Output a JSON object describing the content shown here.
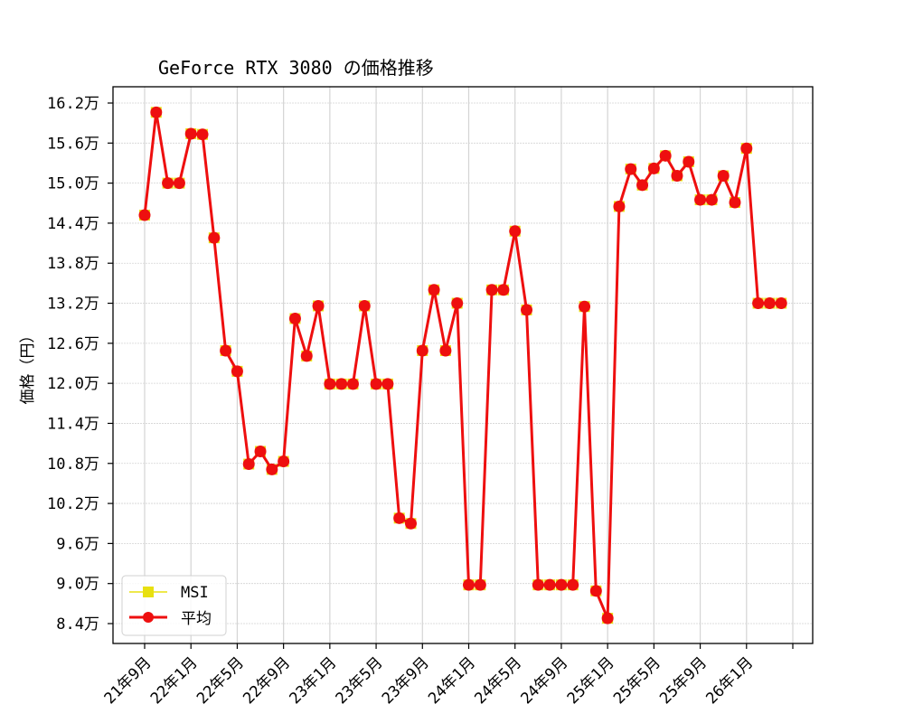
{
  "chart_data": {
    "type": "line",
    "title": "GeForce RTX 3080 の価格推移",
    "xlabel": "",
    "ylabel": "価格（円）",
    "ylim": [
      83500,
      165000
    ],
    "grid": true,
    "legend_position": "lower left",
    "y_ticks": [
      84000,
      90000,
      96000,
      102000,
      108000,
      114000,
      120000,
      126000,
      132000,
      138000,
      144000,
      150000,
      156000,
      162000
    ],
    "y_tick_labels": [
      "8.4万",
      "9.0万",
      "9.6万",
      "10.2万",
      "10.8万",
      "11.4万",
      "12.0万",
      "12.6万",
      "13.2万",
      "13.8万",
      "14.4万",
      "15.0万",
      "15.6万",
      "16.2万"
    ],
    "x_tick_labels": [
      "21年9月",
      "22年1月",
      "22年5月",
      "22年9月",
      "23年1月",
      "23年5月",
      "23年9月",
      "24年1月",
      "24年5月",
      "24年9月",
      "25年1月",
      "25年5月",
      "25年9月",
      "26年1月",
      ""
    ],
    "x": [
      "2021-09",
      "2021-10",
      "2021-11",
      "2021-12",
      "2022-01",
      "2022-02",
      "2022-03",
      "2022-04",
      "2022-05",
      "2022-06",
      "2022-07",
      "2022-08",
      "2022-09",
      "2022-10",
      "2022-11",
      "2022-12",
      "2023-01",
      "2023-02",
      "2023-03",
      "2023-04",
      "2023-05",
      "2023-06",
      "2023-07",
      "2023-08",
      "2023-09",
      "2023-10",
      "2023-11",
      "2023-12",
      "2024-01",
      "2024-02",
      "2024-03",
      "2024-04",
      "2024-05",
      "2024-06",
      "2024-07",
      "2024-08",
      "2024-09",
      "2024-10",
      "2024-11",
      "2024-12",
      "2025-01",
      "2025-02",
      "2025-03",
      "2025-04",
      "2025-05",
      "2025-06",
      "2025-07",
      "2025-08",
      "2025-09",
      "2025-10",
      "2025-11",
      "2025-12",
      "2026-01",
      "2026-02",
      "2026-03",
      "2026-04"
    ],
    "series": [
      {
        "name": "MSI",
        "color": "#e8e010",
        "marker": "square",
        "values": [
          145200,
          160600,
          150000,
          150000,
          157400,
          157300,
          141800,
          124900,
          121800,
          107900,
          109800,
          107100,
          108300,
          129700,
          124100,
          131600,
          119900,
          119900,
          119900,
          131600,
          119900,
          119900,
          99800,
          99000,
          124900,
          134000,
          124900,
          132000,
          89800,
          89800,
          134000,
          134000,
          142800,
          131000,
          89800,
          89800,
          89800,
          89800,
          131500,
          88900,
          84800,
          146500,
          152100,
          149700,
          152200,
          154100,
          151100,
          153200,
          147500,
          147500,
          151100,
          147100,
          155200,
          132000,
          132000,
          132000
        ]
      },
      {
        "name": "平均",
        "color": "#ee0f0f",
        "marker": "circle",
        "values": [
          145200,
          160600,
          150000,
          150000,
          157400,
          157300,
          141800,
          124900,
          121800,
          107900,
          109800,
          107100,
          108300,
          129700,
          124100,
          131600,
          119900,
          119900,
          119900,
          131600,
          119900,
          119900,
          99800,
          99000,
          124900,
          134000,
          124900,
          132000,
          89800,
          89800,
          134000,
          134000,
          142800,
          131000,
          89800,
          89800,
          89800,
          89800,
          131500,
          88900,
          84800,
          146500,
          152100,
          149700,
          152200,
          154100,
          151100,
          153200,
          147500,
          147500,
          151100,
          147100,
          155200,
          132000,
          132000,
          132000
        ]
      }
    ]
  },
  "legend": {
    "items": [
      {
        "label": "MSI"
      },
      {
        "label": "平均"
      }
    ]
  }
}
